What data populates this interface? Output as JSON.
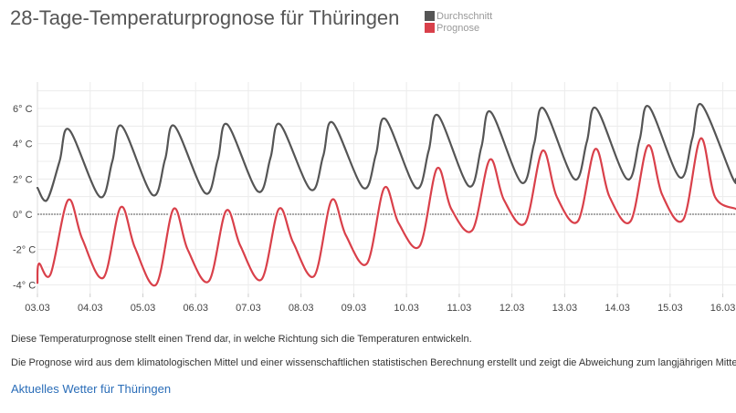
{
  "page": {
    "title": "28-Tage-Temperaturprognose für Thüringen",
    "note1": "Diese Temperaturprognose stellt einen Trend dar, in welche Richtung sich die Temperaturen entwickeln.",
    "note2": "Die Prognose wird aus dem klimatologischen Mittel und einer wissenschaftlichen statistischen Berechnung erstellt und zeigt die Abweichung zum langjährigen Mittel.",
    "link": "Aktuelles Wetter für Thüringen"
  },
  "chart_data": {
    "type": "line",
    "title": "28-Tage-Temperaturprognose für Thüringen",
    "x_unit": "day index (0 = 03.03)",
    "xlim": [
      0,
      13.25
    ],
    "ylim": [
      -4.5,
      7.5
    ],
    "y_ticks": [
      -4,
      -2,
      0,
      2,
      4,
      6
    ],
    "y_tick_labels": [
      "-4° C",
      "-2° C",
      "0° C",
      "2° C",
      "4° C",
      "6° C"
    ],
    "x_ticks": [
      0,
      1,
      2,
      3,
      4,
      5,
      6,
      7,
      8,
      9,
      10,
      11,
      12,
      13
    ],
    "x_tick_labels": [
      "03.03",
      "04.03",
      "05.03",
      "06.03",
      "07.03",
      "08.03",
      "09.03",
      "10.03",
      "11.03",
      "12.03",
      "13.03",
      "14.03",
      "15.03",
      "16.03"
    ],
    "grid": true,
    "legend_position": "top",
    "series": [
      {
        "name": "Durchschnitt",
        "color": "#555555",
        "x": [
          0.0,
          0.18,
          0.42,
          0.6,
          1.18,
          1.42,
          1.6,
          2.18,
          2.42,
          2.6,
          3.18,
          3.42,
          3.6,
          4.18,
          4.42,
          4.6,
          5.18,
          5.42,
          5.6,
          6.18,
          6.42,
          6.6,
          7.18,
          7.42,
          7.6,
          8.18,
          8.42,
          8.6,
          9.18,
          9.42,
          9.6,
          10.18,
          10.42,
          10.6,
          11.18,
          11.42,
          11.6,
          12.18,
          12.42,
          12.6,
          13.18,
          13.25
        ],
        "y": [
          1.5,
          0.8,
          3.0,
          4.8,
          1.0,
          3.0,
          5.0,
          1.1,
          3.1,
          5.0,
          1.2,
          3.1,
          5.1,
          1.3,
          3.2,
          5.1,
          1.4,
          3.3,
          5.2,
          1.5,
          3.4,
          5.4,
          1.5,
          3.6,
          5.6,
          1.6,
          3.8,
          5.8,
          1.8,
          4.0,
          6.0,
          2.0,
          4.1,
          6.0,
          2.0,
          4.2,
          6.1,
          2.1,
          4.3,
          6.2,
          2.1,
          2.0
        ]
      },
      {
        "name": "Prognose",
        "color": "#d9404a",
        "x": [
          0.0,
          0.03,
          0.25,
          0.58,
          0.85,
          1.25,
          1.58,
          1.85,
          2.25,
          2.58,
          2.85,
          3.25,
          3.58,
          3.85,
          4.25,
          4.58,
          4.85,
          5.25,
          5.58,
          5.85,
          6.25,
          6.58,
          6.85,
          7.25,
          7.58,
          7.85,
          8.25,
          8.58,
          8.85,
          9.25,
          9.58,
          9.85,
          10.25,
          10.58,
          10.85,
          11.25,
          11.58,
          11.85,
          12.25,
          12.58,
          12.85,
          13.25
        ],
        "y": [
          -3.9,
          -2.8,
          -3.4,
          0.8,
          -1.4,
          -3.6,
          0.4,
          -1.9,
          -4.0,
          0.3,
          -2.0,
          -3.8,
          0.2,
          -1.8,
          -3.7,
          0.3,
          -1.6,
          -3.5,
          0.8,
          -1.2,
          -2.8,
          1.5,
          -0.5,
          -1.8,
          2.6,
          0.3,
          -0.9,
          3.1,
          0.8,
          -0.5,
          3.6,
          1.0,
          -0.4,
          3.7,
          1.0,
          -0.4,
          3.9,
          1.1,
          -0.3,
          4.3,
          1.0,
          0.3
        ]
      }
    ]
  }
}
